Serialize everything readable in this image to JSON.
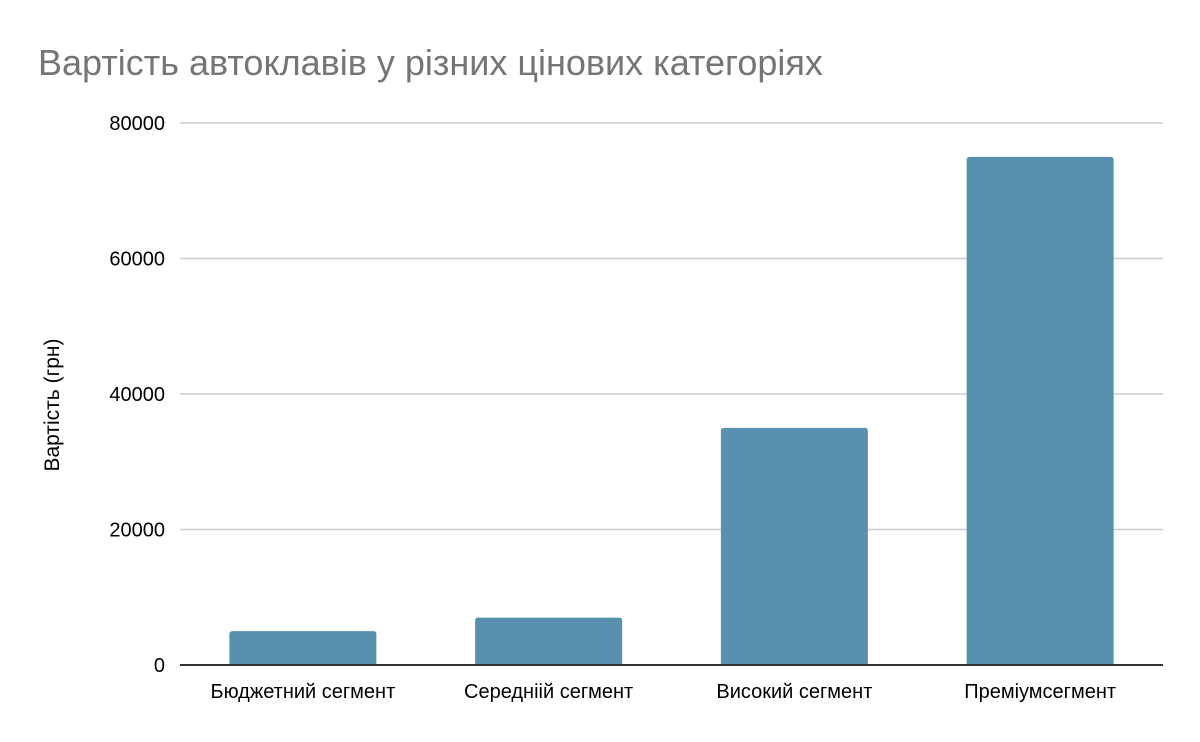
{
  "chart_data": {
    "type": "bar",
    "title": "Вартість автоклавів у різних цінових категоріях",
    "xlabel": "",
    "ylabel": "Вартість (грн)",
    "categories": [
      "Бюджетний сегмент",
      "Середніій сегмент",
      "Високий сегмент",
      "Преміумсегмент"
    ],
    "values": [
      5000,
      7000,
      35000,
      75000
    ],
    "ylim": [
      0,
      80000
    ],
    "yticks": [
      0,
      20000,
      40000,
      60000,
      80000
    ],
    "grid": true,
    "legend": "none",
    "bar_color": "#5891ae"
  }
}
